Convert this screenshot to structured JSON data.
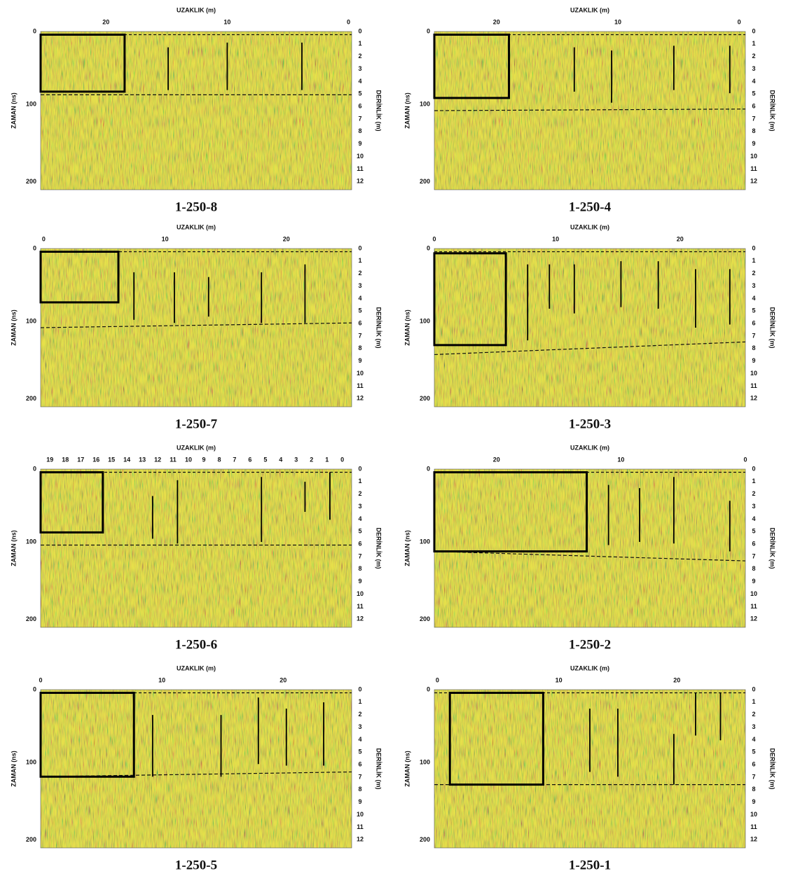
{
  "x_axis_label": "UZAKLIK (m)",
  "y_axis_label": "ZAMAN (ns)",
  "y2_axis_label": "DERİNLİK (m)",
  "time_ticks": [
    "0",
    "100",
    "200"
  ],
  "depth_ticks": [
    "0",
    "1",
    "2",
    "3",
    "4",
    "5",
    "6",
    "7",
    "8",
    "9",
    "10",
    "11",
    "12"
  ],
  "panels": [
    {
      "label": "1-250-8",
      "x_ticks": [
        "20",
        "10",
        "0"
      ]
    },
    {
      "label": "1-250-4",
      "x_ticks": [
        "20",
        "10",
        "0"
      ]
    },
    {
      "label": "1-250-7",
      "x_ticks": [
        "0",
        "10",
        "20"
      ]
    },
    {
      "label": "1-250-3",
      "x_ticks": [
        "0",
        "10",
        "20"
      ]
    },
    {
      "label": "1-250-6",
      "x_ticks": [
        "19",
        "18",
        "17",
        "16",
        "15",
        "14",
        "13",
        "12",
        "11",
        "10",
        "9",
        "8",
        "7",
        "6",
        "5",
        "4",
        "3",
        "2",
        "1",
        "0"
      ]
    },
    {
      "label": "1-250-2",
      "x_ticks": [
        "20",
        "10",
        "0"
      ]
    },
    {
      "label": "1-250-5",
      "x_ticks": [
        "0",
        "10",
        "20"
      ]
    },
    {
      "label": "1-250-1",
      "x_ticks": [
        "0",
        "10",
        "20"
      ]
    }
  ]
}
